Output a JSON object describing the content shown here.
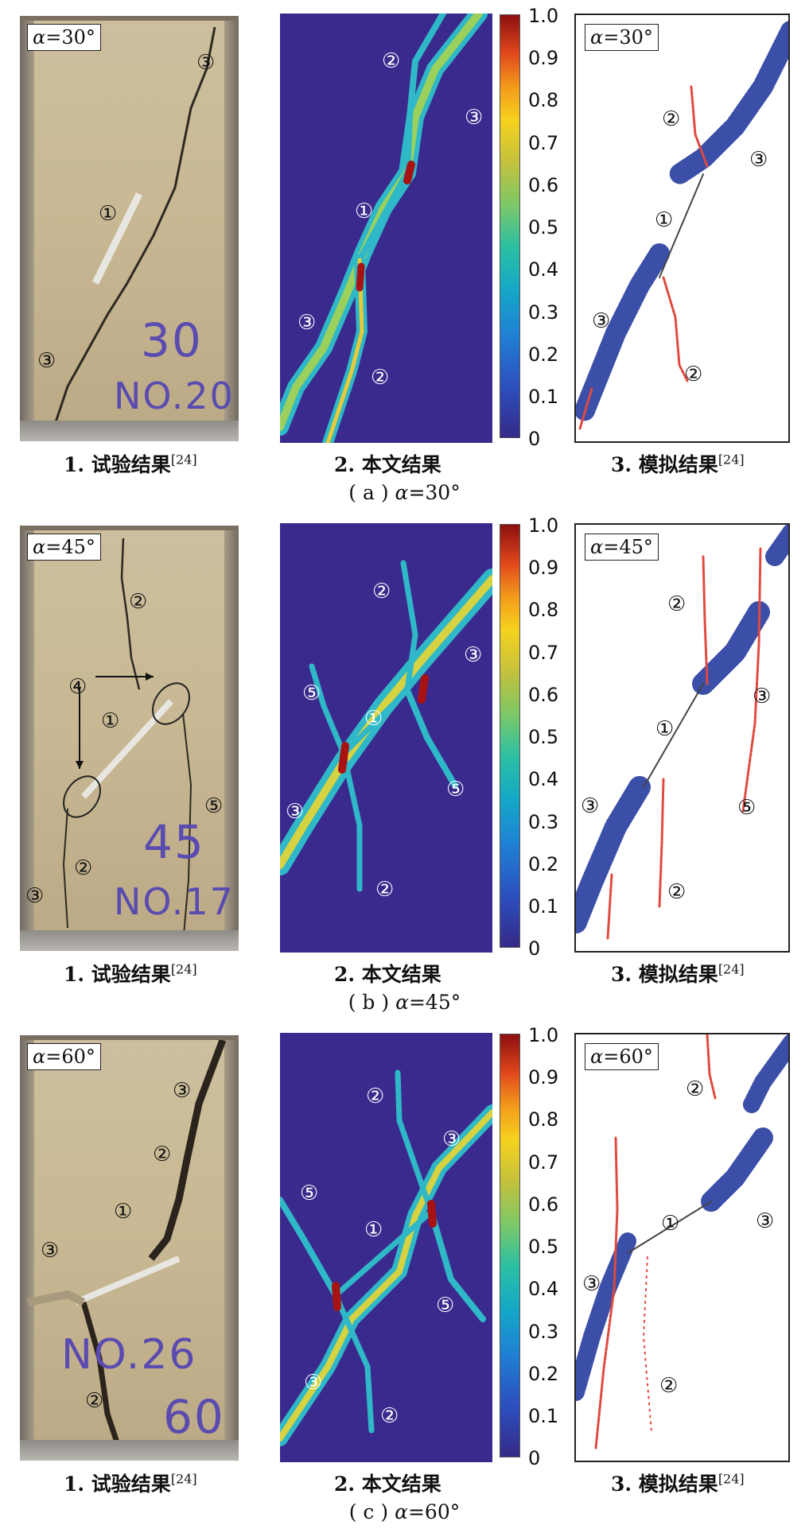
{
  "panel_titles": {
    "experiment": "1. 试验结果",
    "experiment_ref": "[24]",
    "this_work": "2. 本文结果",
    "simulation": "3. 模拟结果",
    "simulation_ref": "[24]"
  },
  "colorbar_ticks": [
    "1.0",
    "0.9",
    "0.8",
    "0.7",
    "0.6",
    "0.5",
    "0.4",
    "0.3",
    "0.2",
    "0.1",
    "0"
  ],
  "crack_markers": {
    "m1": "①",
    "m2": "②",
    "m3": "③",
    "m4": "④",
    "m5": "⑤"
  },
  "rows": [
    {
      "alpha_symbol": "α",
      "alpha_value": "=30°",
      "subcaption_prefix": "( a )",
      "specimen_text_1": "30",
      "specimen_text_2": "NO.20"
    },
    {
      "alpha_symbol": "α",
      "alpha_value": "=45°",
      "subcaption_prefix": "( b )",
      "specimen_text_1": "45",
      "specimen_text_2": "NO.17"
    },
    {
      "alpha_symbol": "α",
      "alpha_value": "=60°",
      "subcaption_prefix": "( c )",
      "specimen_text_1": "NO.26",
      "specimen_text_2": "60"
    }
  ],
  "colors": {
    "heatmap_background": "#3b2a8e",
    "simulation_red": "#e0493f",
    "simulation_blue": "#3b4fa8",
    "handwriting": "#5a4bb0"
  }
}
